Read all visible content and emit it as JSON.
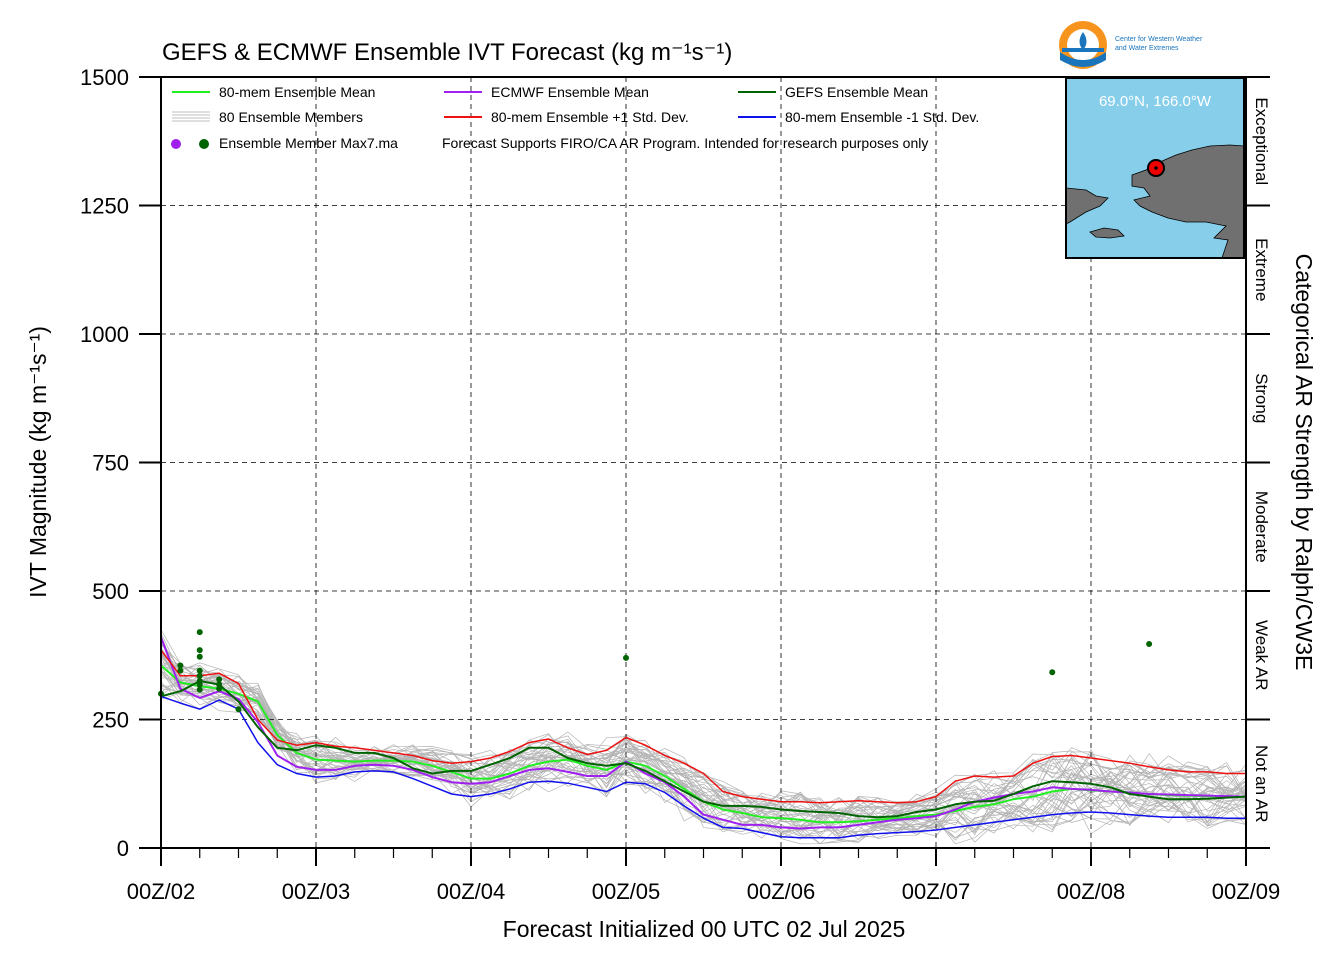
{
  "chart_data": {
    "type": "line",
    "title": "GEFS & ECMWF Ensemble IVT Forecast (kg m⁻¹s⁻¹)",
    "xlabel": "Forecast Initialized 00 UTC 02 Jul 2025",
    "ylabel": "IVT Magnitude (kg m⁻¹s⁻¹)",
    "right_label": "Categorical AR Strength by Ralph/CW3E",
    "xlim": [
      0,
      168
    ],
    "ylim": [
      0,
      1500
    ],
    "x_unit": "forecast hours",
    "grid": true,
    "legend_position": "top-left",
    "x_ticks": [
      {
        "value": 0,
        "label": "00Z/02"
      },
      {
        "value": 24,
        "label": "00Z/03"
      },
      {
        "value": 48,
        "label": "00Z/04"
      },
      {
        "value": 72,
        "label": "00Z/05"
      },
      {
        "value": 96,
        "label": "00Z/06"
      },
      {
        "value": 120,
        "label": "00Z/07"
      },
      {
        "value": 144,
        "label": "00Z/08"
      },
      {
        "value": 168,
        "label": "00Z/09"
      }
    ],
    "y_ticks": [
      0,
      250,
      500,
      750,
      1000,
      1250,
      1500
    ],
    "categories_right": [
      {
        "label": "Not an AR",
        "from": 0,
        "to": 250
      },
      {
        "label": "Weak AR",
        "from": 250,
        "to": 500
      },
      {
        "label": "Moderate",
        "from": 500,
        "to": 750
      },
      {
        "label": "Strong",
        "from": 750,
        "to": 1000
      },
      {
        "label": "Extreme",
        "from": 1000,
        "to": 1250
      },
      {
        "label": "Exceptional",
        "from": 1250,
        "to": 1500
      }
    ],
    "legend": [
      {
        "label": "80-mem Ensemble Mean",
        "color": "#22ee22",
        "kind": "line"
      },
      {
        "label": "ECMWF Ensemble Mean",
        "color": "#a020f0",
        "kind": "line"
      },
      {
        "label": "GEFS Ensemble Mean",
        "color": "#006400",
        "kind": "line"
      },
      {
        "label": "80 Ensemble Members",
        "color": "#aaaaaa",
        "kind": "multiline"
      },
      {
        "label": "80-mem Ensemble +1 Std. Dev.",
        "color": "#ee1111",
        "kind": "line"
      },
      {
        "label": "80-mem Ensemble -1 Std. Dev.",
        "color": "#1111ee",
        "kind": "line"
      }
    ],
    "legend_note_label": "Ensemble Member Max7.ma",
    "legend_note_colors": [
      "#a020f0",
      "#006400"
    ],
    "disclaimer": "Forecast Supports FIRO/CA AR Program. Intended for research purposes only",
    "inset_map": {
      "location": "69.0°N, 166.0°W"
    },
    "logo_text": [
      "Center for Western Weather",
      "and Water Extremes"
    ],
    "series": [
      {
        "name": "80-mem Ensemble Mean",
        "color": "#22ee22",
        "width": 2,
        "x": [
          0,
          3,
          6,
          9,
          12,
          15,
          18,
          21,
          24,
          27,
          30,
          33,
          36,
          39,
          42,
          45,
          48,
          51,
          54,
          57,
          60,
          63,
          66,
          69,
          72,
          75,
          78,
          81,
          84,
          87,
          90,
          93,
          96,
          99,
          102,
          105,
          108,
          111,
          114,
          117,
          120,
          123,
          126,
          129,
          132,
          135,
          138,
          141,
          144,
          147,
          150,
          153,
          156,
          159,
          162,
          165,
          168
        ],
        "y": [
          355,
          322,
          315,
          310,
          300,
          285,
          220,
          185,
          172,
          170,
          168,
          170,
          170,
          168,
          160,
          148,
          135,
          135,
          145,
          160,
          168,
          172,
          160,
          152,
          168,
          160,
          140,
          115,
          90,
          75,
          68,
          60,
          58,
          55,
          50,
          50,
          52,
          55,
          58,
          62,
          65,
          72,
          80,
          85,
          95,
          100,
          110,
          115,
          112,
          110,
          108,
          105,
          103,
          102,
          101,
          100,
          100
        ]
      },
      {
        "name": "ECMWF Ensemble Mean",
        "color": "#a020f0",
        "width": 2,
        "x": [
          0,
          3,
          6,
          9,
          12,
          15,
          18,
          21,
          24,
          27,
          30,
          33,
          36,
          39,
          42,
          45,
          48,
          51,
          54,
          57,
          60,
          63,
          66,
          69,
          72,
          75,
          78,
          81,
          84,
          87,
          90,
          93,
          96,
          99,
          102,
          105,
          108,
          111,
          114,
          117,
          120,
          123,
          126,
          129,
          132,
          135,
          138,
          141,
          144,
          147,
          150,
          153,
          156,
          159,
          162,
          165,
          168
        ],
        "y": [
          410,
          310,
          292,
          305,
          290,
          245,
          180,
          158,
          152,
          152,
          160,
          162,
          160,
          152,
          138,
          128,
          125,
          128,
          140,
          152,
          155,
          148,
          140,
          140,
          168,
          145,
          128,
          100,
          65,
          55,
          45,
          45,
          40,
          38,
          40,
          40,
          45,
          50,
          55,
          58,
          62,
          75,
          90,
          98,
          105,
          110,
          118,
          115,
          113,
          110,
          108,
          105,
          104,
          103,
          102,
          101,
          100
        ]
      },
      {
        "name": "GEFS Ensemble Mean",
        "color": "#006400",
        "width": 2,
        "x": [
          0,
          3,
          6,
          9,
          12,
          15,
          18,
          21,
          24,
          27,
          30,
          33,
          36,
          39,
          42,
          45,
          48,
          51,
          54,
          57,
          60,
          63,
          66,
          69,
          72,
          75,
          78,
          81,
          84,
          87,
          90,
          93,
          96,
          99,
          102,
          105,
          108,
          111,
          114,
          117,
          120,
          123,
          126,
          129,
          132,
          135,
          138,
          141,
          144,
          147,
          150,
          153,
          156,
          159,
          162,
          165,
          168
        ],
        "y": [
          295,
          305,
          325,
          318,
          285,
          235,
          195,
          190,
          200,
          195,
          185,
          185,
          175,
          155,
          145,
          150,
          150,
          162,
          175,
          195,
          195,
          175,
          165,
          160,
          165,
          150,
          130,
          110,
          90,
          82,
          82,
          80,
          75,
          72,
          70,
          68,
          62,
          60,
          62,
          70,
          75,
          85,
          90,
          92,
          105,
          120,
          130,
          128,
          125,
          118,
          105,
          100,
          95,
          95,
          96,
          98,
          100
        ]
      },
      {
        "name": "80-mem Ensemble +1 Std. Dev.",
        "color": "#ee1111",
        "width": 1.5,
        "x": [
          0,
          3,
          6,
          9,
          12,
          15,
          18,
          21,
          24,
          27,
          30,
          33,
          36,
          39,
          42,
          45,
          48,
          51,
          54,
          57,
          60,
          63,
          66,
          69,
          72,
          75,
          78,
          81,
          84,
          87,
          90,
          93,
          96,
          99,
          102,
          105,
          108,
          111,
          114,
          117,
          120,
          123,
          126,
          129,
          132,
          135,
          138,
          141,
          144,
          147,
          150,
          153,
          156,
          159,
          162,
          165,
          168
        ],
        "y": [
          385,
          335,
          335,
          340,
          320,
          250,
          210,
          200,
          205,
          198,
          195,
          190,
          185,
          180,
          170,
          165,
          168,
          175,
          188,
          205,
          212,
          195,
          182,
          190,
          215,
          200,
          180,
          165,
          145,
          110,
          100,
          95,
          90,
          90,
          88,
          90,
          92,
          90,
          88,
          90,
          100,
          130,
          140,
          138,
          140,
          165,
          178,
          180,
          175,
          170,
          165,
          158,
          152,
          148,
          148,
          145,
          145
        ]
      },
      {
        "name": "80-mem Ensemble -1 Std. Dev.",
        "color": "#1111ee",
        "width": 1.5,
        "x": [
          0,
          3,
          6,
          9,
          12,
          15,
          18,
          21,
          24,
          27,
          30,
          33,
          36,
          39,
          42,
          45,
          48,
          51,
          54,
          57,
          60,
          63,
          66,
          69,
          72,
          75,
          78,
          81,
          84,
          87,
          90,
          93,
          96,
          99,
          102,
          105,
          108,
          111,
          114,
          117,
          120,
          123,
          126,
          129,
          132,
          135,
          138,
          141,
          144,
          147,
          150,
          153,
          156,
          159,
          162,
          165,
          168
        ],
        "y": [
          295,
          282,
          270,
          288,
          270,
          205,
          162,
          145,
          138,
          140,
          148,
          150,
          148,
          135,
          120,
          105,
          100,
          105,
          115,
          128,
          130,
          126,
          118,
          110,
          128,
          125,
          108,
          82,
          58,
          40,
          38,
          30,
          22,
          20,
          20,
          20,
          25,
          28,
          30,
          32,
          35,
          40,
          45,
          50,
          55,
          60,
          65,
          68,
          70,
          68,
          65,
          62,
          60,
          60,
          60,
          58,
          58
        ]
      }
    ],
    "max_points": [
      {
        "x": 0,
        "y": 300,
        "color": "#006400"
      },
      {
        "x": 3,
        "y": 345,
        "color": "#006400"
      },
      {
        "x": 3,
        "y": 355,
        "color": "#006400"
      },
      {
        "x": 6,
        "y": 420,
        "color": "#006400"
      },
      {
        "x": 6,
        "y": 385,
        "color": "#006400"
      },
      {
        "x": 6,
        "y": 372,
        "color": "#006400"
      },
      {
        "x": 6,
        "y": 345,
        "color": "#006400"
      },
      {
        "x": 6,
        "y": 335,
        "color": "#006400"
      },
      {
        "x": 6,
        "y": 325,
        "color": "#006400"
      },
      {
        "x": 6,
        "y": 318,
        "color": "#006400"
      },
      {
        "x": 6,
        "y": 308,
        "color": "#006400"
      },
      {
        "x": 9,
        "y": 328,
        "color": "#006400"
      },
      {
        "x": 9,
        "y": 318,
        "color": "#006400"
      },
      {
        "x": 9,
        "y": 310,
        "color": "#006400"
      },
      {
        "x": 12,
        "y": 270,
        "color": "#006400"
      },
      {
        "x": 72,
        "y": 370,
        "color": "#006400"
      },
      {
        "x": 138,
        "y": 342,
        "color": "#006400"
      },
      {
        "x": 153,
        "y": 397,
        "color": "#006400"
      }
    ]
  }
}
